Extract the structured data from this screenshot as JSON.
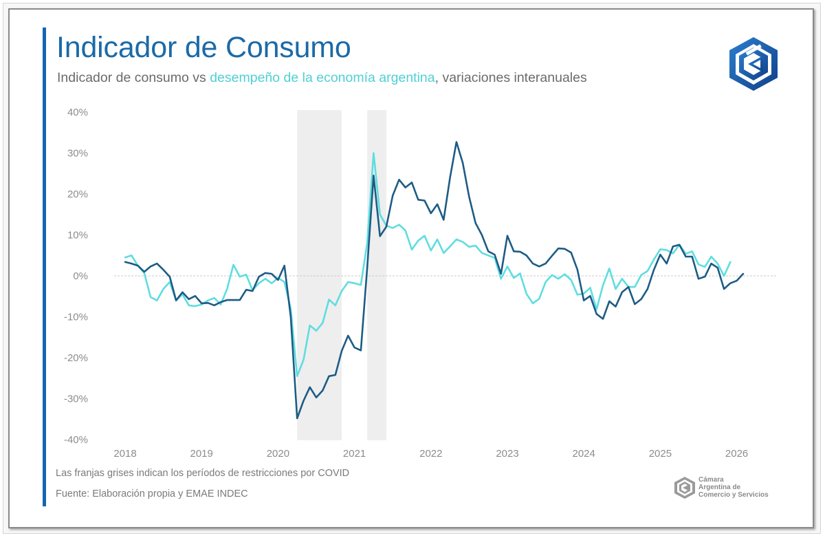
{
  "header": {
    "title": "Indicador de Consumo",
    "subtitle_part1": "Indicador de consumo vs ",
    "subtitle_highlight": "desempeño de la economía argentina",
    "subtitle_part2": ", variaciones interanuales"
  },
  "footer": {
    "note": "Las franjas grises indican los períodos de restricciones por COVID",
    "source": "Fuente: Elaboración propia y EMAE INDEC",
    "org_lines": [
      "Cámara",
      "Argentina de",
      "Comercio y Servicios"
    ]
  },
  "icons": {
    "brand_logo": "hexagon-cac-logo-icon",
    "org_logo": "hexagon-cac-logo-icon"
  },
  "colors": {
    "accent": "#1565b0",
    "title": "#1a6aa8",
    "consumo_series": "#1d5b85",
    "emae_series": "#5fdde0",
    "covid_band": "#eeeeee",
    "zero_line": "#c8c8c8"
  },
  "chart_data": {
    "type": "line",
    "title": "Indicador de Consumo",
    "subtitle": "Indicador de consumo vs desempeño de la economía argentina, variaciones interanuales",
    "xlabel": "",
    "ylabel": "",
    "x_start": "2018-01",
    "x_frequency": "monthly",
    "x_ticks": [
      "2018",
      "2019",
      "2020",
      "2021",
      "2022",
      "2023",
      "2024",
      "2025",
      "2026"
    ],
    "xlim": [
      "2018-01",
      "2026-01"
    ],
    "y_ticks": [
      40,
      30,
      20,
      10,
      0,
      -10,
      -20,
      -30,
      -40
    ],
    "y_tick_labels": [
      "40%",
      "30%",
      "20%",
      "10%",
      "0%",
      "-10%",
      "-20%",
      "-30%",
      "-40%"
    ],
    "ylim": [
      -40,
      40
    ],
    "grid": false,
    "zero_reference_line": true,
    "legend": "none (series identified by subtitle colors)",
    "shaded_periods": [
      {
        "label": "Restricciones COVID",
        "start": "2020-04",
        "end": "2020-11"
      },
      {
        "label": "Restricciones COVID",
        "start": "2021-03",
        "end": "2021-06"
      }
    ],
    "series": [
      {
        "name": "Indicador de consumo",
        "color": "#1d5b85",
        "start": "2018-01",
        "values": [
          3.4,
          3.0,
          2.5,
          1.0,
          2.3,
          3.0,
          1.5,
          -0.2,
          -6.0,
          -4.0,
          -5.7,
          -4.9,
          -6.7,
          -6.6,
          -7.2,
          -6.4,
          -5.9,
          -5.9,
          -5.9,
          -3.4,
          -3.7,
          -0.2,
          0.7,
          0.5,
          -1.0,
          2.5,
          -10.0,
          -34.8,
          -30.5,
          -27.2,
          -29.7,
          -28.0,
          -24.5,
          -24.2,
          -18.3,
          -14.6,
          -17.5,
          -18.2,
          2.0,
          24.5,
          9.7,
          12.0,
          19.6,
          23.5,
          21.6,
          22.8,
          18.6,
          18.4,
          15.3,
          17.5,
          13.7,
          24.0,
          32.7,
          27.6,
          19.3,
          12.9,
          10.0,
          6.0,
          5.2,
          0.5,
          9.8,
          6.0,
          5.9,
          5.0,
          3.0,
          2.3,
          3.0,
          4.9,
          6.7,
          6.6,
          5.7,
          1.5,
          -6.0,
          -4.9,
          -9.3,
          -10.5,
          -6.2,
          -7.5,
          -4.0,
          -2.7,
          -6.9,
          -5.7,
          -3.2,
          1.5,
          5.2,
          3.0,
          7.2,
          7.6,
          4.7,
          4.7,
          -0.7,
          -0.2,
          3.0,
          2.0,
          -3.2,
          -1.8,
          -1.2,
          0.5
        ]
      },
      {
        "name": "Desempeño de la economía argentina (EMAE)",
        "color": "#5fdde0",
        "start": "2018-01",
        "values": [
          4.5,
          5.0,
          2.5,
          0.7,
          -5.2,
          -6.0,
          -3.2,
          -1.5,
          -6.0,
          -4.5,
          -7.2,
          -7.4,
          -7.0,
          -6.0,
          -5.4,
          -7.0,
          -3.2,
          2.7,
          -0.2,
          0.3,
          -3.5,
          -1.8,
          -0.7,
          -1.8,
          -0.5,
          -1.5,
          -8.0,
          -24.5,
          -20.5,
          -12.1,
          -13.4,
          -11.5,
          -5.8,
          -7.2,
          -3.7,
          -1.5,
          -1.8,
          -2.2,
          8.0,
          30.0,
          15.0,
          12.3,
          11.7,
          12.5,
          11.1,
          6.4,
          8.6,
          9.8,
          6.2,
          8.9,
          5.6,
          7.2,
          8.9,
          8.3,
          7.1,
          7.4,
          5.6,
          5.0,
          4.4,
          -0.7,
          2.3,
          -0.5,
          0.6,
          -4.4,
          -6.7,
          -5.6,
          -1.5,
          0.2,
          -0.7,
          0.4,
          -1.0,
          -4.6,
          -4.3,
          -2.9,
          -8.2,
          -2.3,
          1.8,
          -3.2,
          -0.7,
          -2.7,
          -2.7,
          0.2,
          1.2,
          4.0,
          6.5,
          6.3,
          5.5,
          7.6,
          5.4,
          6.0,
          2.8,
          2.2,
          4.7,
          3.0,
          0.0,
          3.4
        ]
      }
    ]
  }
}
